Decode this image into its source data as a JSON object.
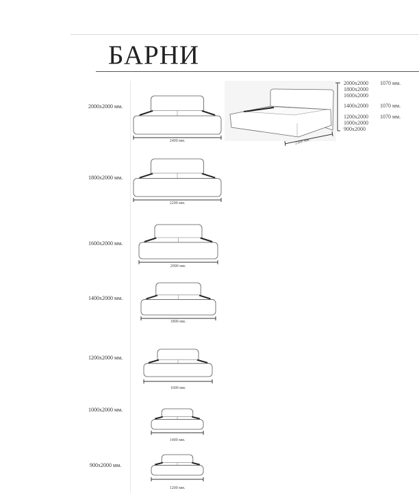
{
  "title": "БАРНИ",
  "sizes": [
    {
      "label": "2000x2000 мм.",
      "overall_width": "2400 мм."
    },
    {
      "label": "1800x2000 мм.",
      "overall_width": "2200 мм."
    },
    {
      "label": "1600x2000 мм.",
      "overall_width": "2000 мм."
    },
    {
      "label": "1400x2000 мм.",
      "overall_width": "1800 мм."
    },
    {
      "label": "1200x2000 мм.",
      "overall_width": "1600 мм."
    },
    {
      "label": "1000x2000 мм.",
      "overall_width": "1400 мм."
    },
    {
      "label": "900x2000 мм.",
      "overall_width": "1200 мм."
    }
  ],
  "perspective": {
    "length": "2300 мм.",
    "heights": [
      {
        "sizes": [
          "2000x2000",
          "1800x2000",
          "1600x2000"
        ],
        "height": "1070 мм."
      },
      {
        "sizes": [
          "1400x2000"
        ],
        "height": "1070 мм."
      },
      {
        "sizes": [
          "1200x2000",
          "1000x2000",
          "900x2000"
        ],
        "height": "1070 мм."
      }
    ]
  }
}
